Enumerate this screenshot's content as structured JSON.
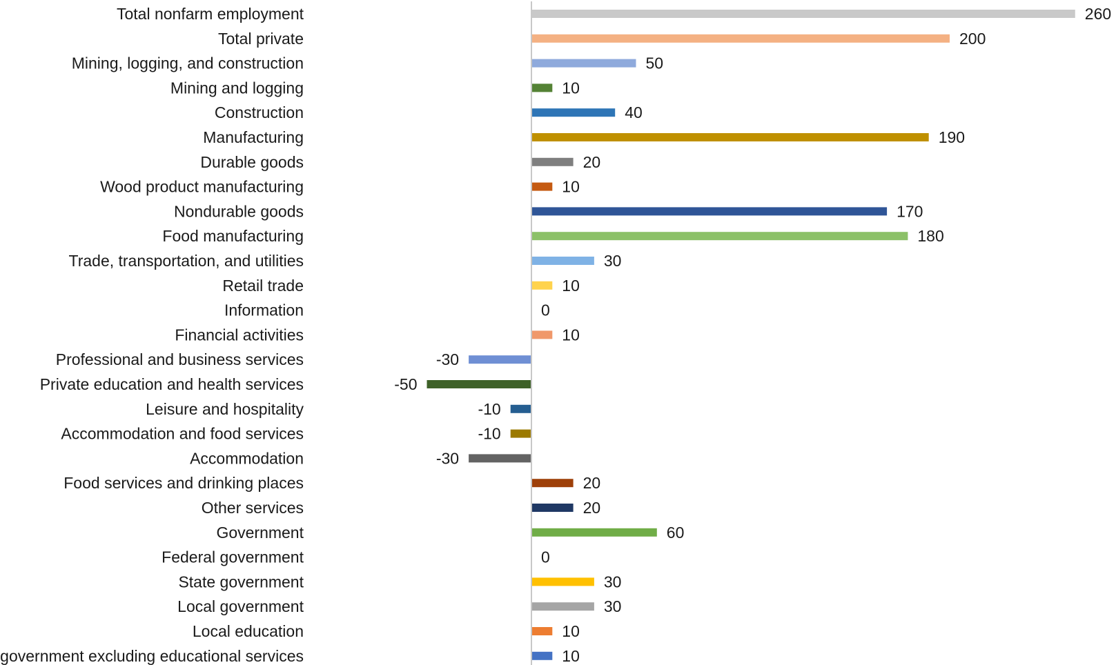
{
  "chart_data": {
    "type": "bar",
    "orientation": "horizontal",
    "title": "",
    "xlabel": "",
    "ylabel": "",
    "grid": false,
    "legend": "none",
    "xlim": [
      -50,
      260
    ],
    "categories": [
      "Total nonfarm employment",
      "Total private",
      "Mining, logging, and construction",
      "Mining and logging",
      "Construction",
      "Manufacturing",
      "Durable goods",
      "Wood product manufacturing",
      "Nondurable goods",
      "Food manufacturing",
      "Trade, transportation, and utilities",
      "Retail trade",
      "Information",
      "Financial activities",
      "Professional and business services",
      "Private education and health services",
      "Leisure and hospitality",
      "Accommodation and food services",
      "Accommodation",
      "Food services and drinking places",
      "Other services",
      "Government",
      "Federal government",
      "State government",
      "Local government",
      "Local education",
      "Local government excluding educational services"
    ],
    "values": [
      260,
      200,
      50,
      10,
      40,
      190,
      20,
      10,
      170,
      180,
      30,
      10,
      0,
      10,
      -30,
      -50,
      -10,
      -10,
      -30,
      20,
      20,
      60,
      0,
      30,
      30,
      10,
      10
    ],
    "colors": [
      "#c9c9c9",
      "#f4b183",
      "#8faadc",
      "#548235",
      "#2e75b6",
      "#bf9000",
      "#7f7f7f",
      "#c55a11",
      "#2f5597",
      "#8cc168",
      "#7fb2e5",
      "#ffd34d",
      "#a5a5a5",
      "#f0986a",
      "#6f8fd4",
      "#3e6128",
      "#255e91",
      "#9c7a00",
      "#636363",
      "#9e4009",
      "#1f3864",
      "#70ad47",
      "#b4b4b4",
      "#ffc000",
      "#a5a5a5",
      "#ed7d31",
      "#4472c4"
    ],
    "axis_color": "#c8c8c8"
  }
}
